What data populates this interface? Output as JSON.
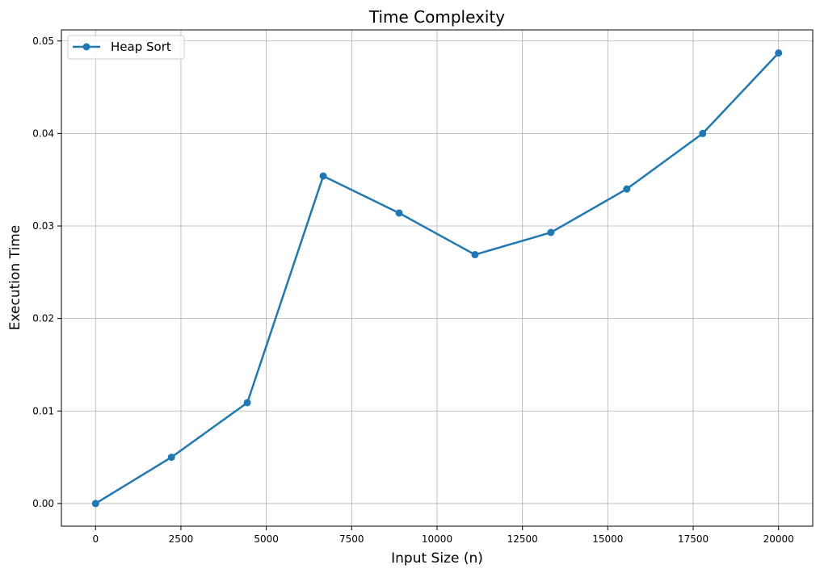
{
  "chart_data": {
    "type": "line",
    "title": "Time Complexity",
    "xlabel": "Input Size (n)",
    "ylabel": "Execution Time",
    "xlim": [
      -1000,
      21000
    ],
    "ylim": [
      -0.00245,
      0.0512
    ],
    "xticks": [
      0,
      2500,
      5000,
      7500,
      10000,
      12500,
      15000,
      17500,
      20000
    ],
    "yticks": [
      0.0,
      0.01,
      0.02,
      0.03,
      0.04,
      0.05
    ],
    "xtick_labels": [
      "0",
      "2500",
      "5000",
      "7500",
      "10000",
      "12500",
      "15000",
      "17500",
      "20000"
    ],
    "ytick_labels": [
      "0.00",
      "0.01",
      "0.02",
      "0.03",
      "0.04",
      "0.05"
    ],
    "grid": true,
    "legend_position": "top-left",
    "series": [
      {
        "name": "Heap Sort",
        "color": "#1f77b4",
        "x": [
          0,
          2222,
          4444,
          6667,
          8889,
          11111,
          13333,
          15556,
          17778,
          20000
        ],
        "y": [
          0.0,
          0.005,
          0.0109,
          0.0354,
          0.0314,
          0.0269,
          0.0293,
          0.034,
          0.04,
          0.0487
        ]
      }
    ]
  }
}
